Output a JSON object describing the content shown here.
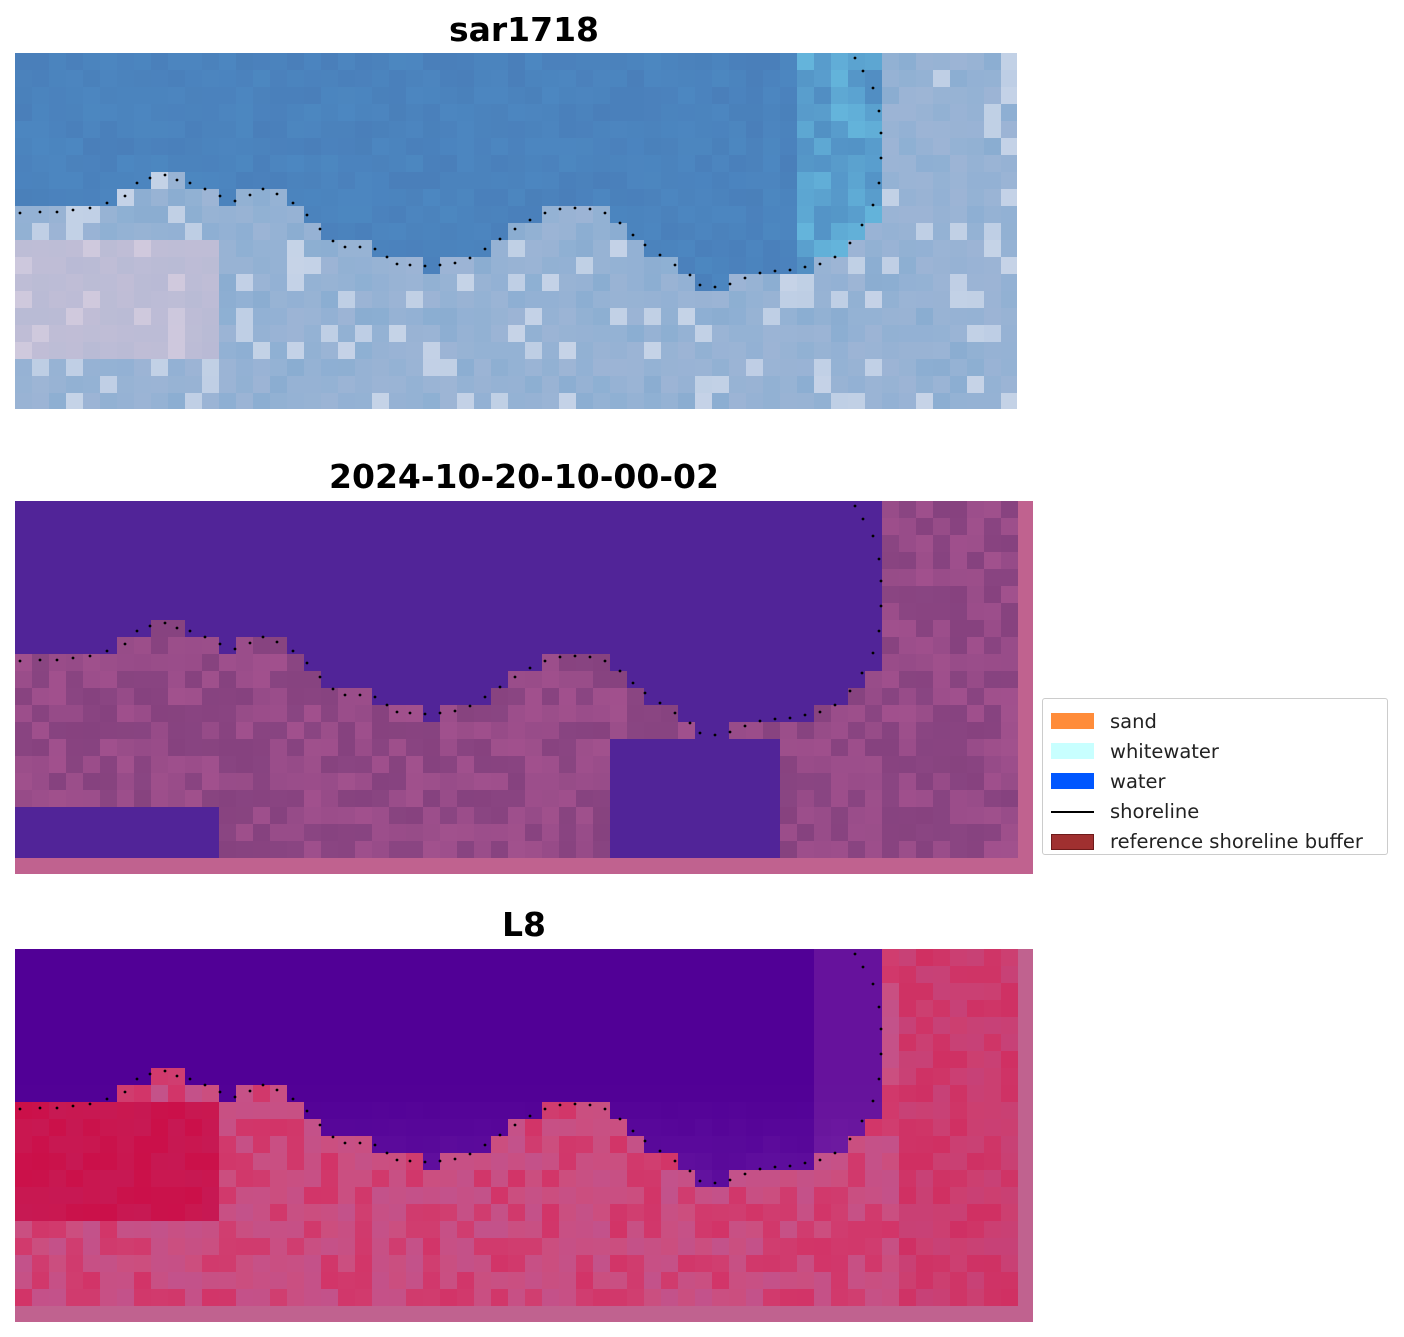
{
  "panels": [
    {
      "id": "rgb",
      "title": "sar1718"
    },
    {
      "id": "classified",
      "title": "2024-10-20-10-00-02"
    },
    {
      "id": "l8",
      "title": "L8"
    }
  ],
  "legend": {
    "items": [
      {
        "label": "sand",
        "color": "#ff8c3a",
        "kind": "patch"
      },
      {
        "label": "whitewater",
        "color": "#c8ffff",
        "kind": "patch"
      },
      {
        "label": "water",
        "color": "#0057ff",
        "kind": "patch"
      },
      {
        "label": "shoreline",
        "color": "#000000",
        "kind": "line"
      },
      {
        "label": "reference shoreline buffer",
        "color": "#a03030",
        "kind": "patch"
      }
    ]
  },
  "colors": {
    "rgb_water": "#4a7fba",
    "rgb_land": "#8fb0d3",
    "class_water": "#512498",
    "class_land": "#8a4582",
    "class_border": "#c0628f",
    "l8_water": "#510096",
    "l8_land": "#cc4e7e",
    "l8_border": "#c0628f"
  }
}
